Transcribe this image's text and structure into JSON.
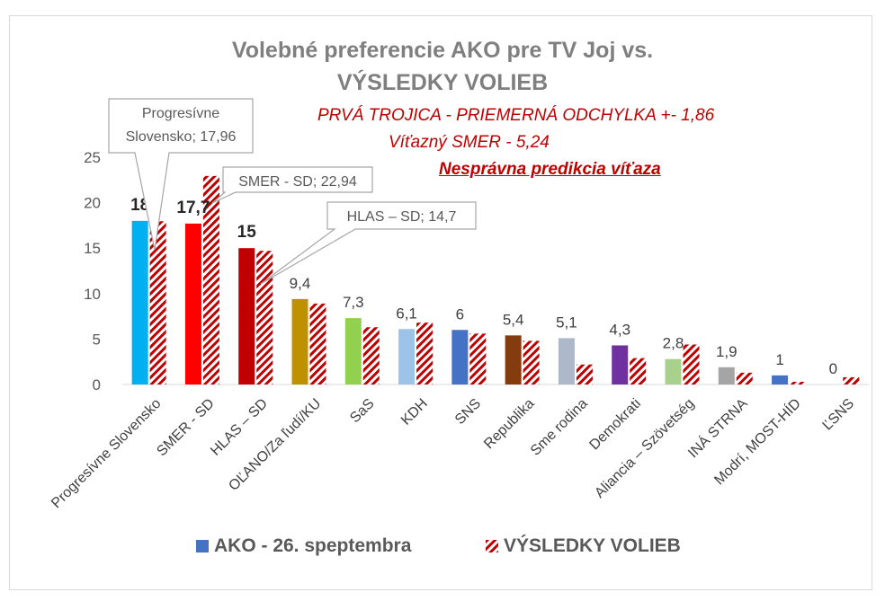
{
  "chart_data": {
    "type": "bar",
    "title_lines": [
      "Volebné preferencie AKO pre TV Joj vs.",
      "VÝSLEDKY VOLIEB"
    ],
    "annotations": {
      "line1": "PRVÁ TROJICA - PRIEMERNÁ ODCHYLKA +- 1,86",
      "line2": "Víťazný SMER - 5,24",
      "line3": "Nesprávna predikcia víťaza"
    },
    "callouts": [
      {
        "label": "Progresívne\nSlovensko; 17,96",
        "category": "Progresívne Slovensko"
      },
      {
        "label": "SMER - SD; 22,94",
        "category": "SMER - SD"
      },
      {
        "label": "HLAS – SD; 14,7",
        "category": "HLAS – SD"
      }
    ],
    "categories": [
      "Progresívne Slovensko",
      "SMER - SD",
      "HLAS – SD",
      "OĽANO/Za ľudí/KU",
      "SaS",
      "KDH",
      "SNS",
      "Republika",
      "Sme rodina",
      "Demokrati",
      "Aliancia – Szövetség",
      "INÁ STRNA",
      "Modrí, MOST-HÍD",
      "ĽSNS"
    ],
    "series": [
      {
        "name": "AKO - 26. speptembra",
        "values": [
          18,
          17.7,
          15,
          9.4,
          7.3,
          6.1,
          6,
          5.4,
          5.1,
          4.3,
          2.8,
          1.9,
          1,
          0
        ],
        "data_labels": [
          "18",
          "17,7",
          "15",
          "9,4",
          "7,3",
          "6,1",
          "6",
          "5,4",
          "5,1",
          "4,3",
          "2,8",
          "1,9",
          "1",
          "0"
        ],
        "bar_colors": [
          "#00b0f0",
          "#ff0000",
          "#c00000",
          "#bf9000",
          "#92d050",
          "#9dc3e6",
          "#4472c4",
          "#843c0c",
          "#adb9ca",
          "#7030a0",
          "#a9d18e",
          "#a5a5a5",
          "#4472c4",
          "#ffffff"
        ]
      },
      {
        "name": "VÝSLEDKY VOLIEB",
        "values": [
          17.96,
          22.94,
          14.7,
          8.9,
          6.3,
          6.8,
          5.6,
          4.8,
          2.2,
          2.9,
          4.4,
          1.3,
          0.3,
          0.8
        ],
        "pattern_color": "#c00000"
      }
    ],
    "ylim": [
      0,
      25
    ],
    "yticks": [
      "0",
      "5",
      "10",
      "15",
      "20",
      "25"
    ],
    "grid": false,
    "legend_position": "bottom"
  }
}
